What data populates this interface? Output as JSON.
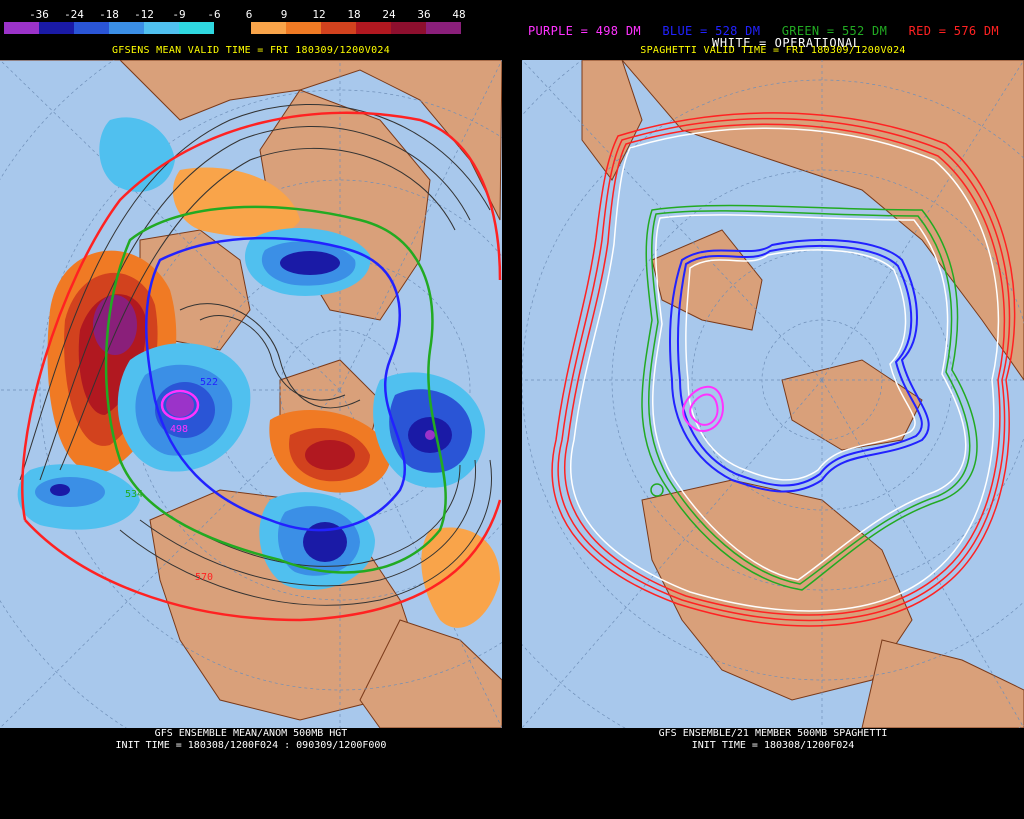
{
  "colorbar": {
    "labels": [
      "-36",
      "-24",
      "-18",
      "-12",
      "-9",
      "-6",
      "6",
      "9",
      "12",
      "18",
      "24",
      "36",
      "48"
    ],
    "colors": [
      "#9b33c9",
      "#1a1aa6",
      "#2a55d6",
      "#3b8fe6",
      "#50c0ef",
      "#2fd8e0",
      "#000000",
      "#f9a44a",
      "#f07a24",
      "#d2421e",
      "#b11820",
      "#8d0f2e",
      "#8a1f7a"
    ]
  },
  "left": {
    "valid_title": "GFSENS MEAN VALID TIME = FRI 180309/1200V024",
    "footer_line1": "GFS ENSEMBLE MEAN/ANOM 500MB HGT",
    "footer_line2": "INIT TIME = 180308/1200F024 : 090309/1200F000",
    "contour_labels": [
      "498",
      "534",
      "522",
      "570"
    ]
  },
  "right": {
    "legend": [
      {
        "text": "PURPLE = 498 DM",
        "color": "#ff33ff"
      },
      {
        "text": "BLUE = 528 DM",
        "color": "#2222ff"
      },
      {
        "text": "GREEN = 552 DM",
        "color": "#22aa22"
      },
      {
        "text": "RED = 576 DM",
        "color": "#ff2222"
      }
    ],
    "operational_label": "WHITE = OPERATIONAL",
    "valid_title": "SPAGHETTI VALID TIME = FRI 180309/1200V024",
    "footer_line1": "GFS ENSEMBLE/21 MEMBER 500MB SPAGHETTI",
    "footer_line2": "INIT TIME = 180308/1200F024"
  },
  "colors": {
    "ocean": "#a8c8ec",
    "land": "#d9a07a",
    "coast": "#7a3a1a"
  }
}
